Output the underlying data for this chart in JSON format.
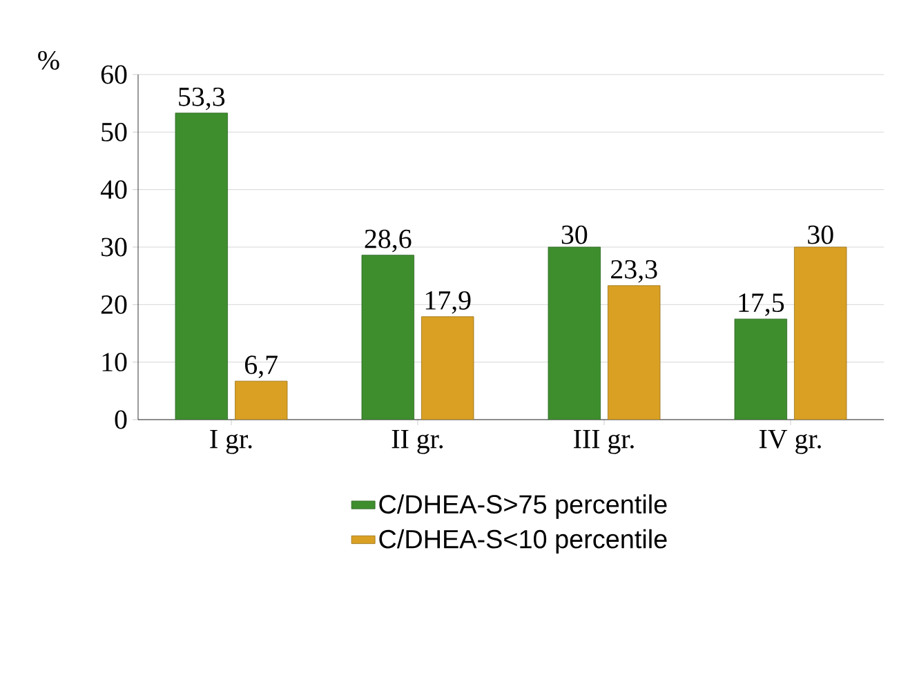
{
  "chart_data": {
    "type": "bar",
    "ylabel": "%",
    "categories": [
      "I gr.",
      "II gr.",
      "III gr.",
      "IV gr."
    ],
    "series": [
      {
        "name": "C/DHEA-S>75 percentile",
        "color": "#3e8e2e",
        "values": [
          53.3,
          28.6,
          30,
          17.5
        ],
        "value_labels": [
          "53,3",
          "28,6",
          "30",
          "17,5"
        ]
      },
      {
        "name": "C/DHEA-S<10 percentile",
        "color": "#d9a023",
        "values": [
          6.7,
          17.9,
          23.3,
          30
        ],
        "value_labels": [
          "6,7",
          "17,9",
          "23,3",
          "30"
        ]
      }
    ],
    "ylim": [
      0,
      60
    ],
    "yticks": [
      0,
      10,
      20,
      30,
      40,
      50,
      60
    ],
    "grid": "y",
    "legend": "bottom"
  }
}
